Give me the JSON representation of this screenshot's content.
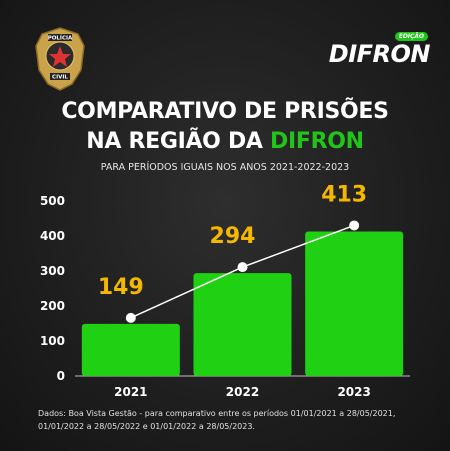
{
  "branding": {
    "badge_line1": "POLÍCIA",
    "badge_line2": "CIVIL",
    "logo_tag": "EDIÇÃO",
    "logo_word": "DIFRON"
  },
  "header": {
    "title_line1": "COMPARATIVO DE PRISÕES",
    "title_line2_prefix": "NA REGIÃO DA ",
    "title_line2_highlight": "DIFRON",
    "subtitle": "PARA PERÍODOS IGUAIS NOS ANOS 2021-2022-2023"
  },
  "chart_data": {
    "type": "bar",
    "categories": [
      "2021",
      "2022",
      "2023"
    ],
    "values": [
      149,
      294,
      413
    ],
    "data_labels": [
      "149",
      "294",
      "413"
    ],
    "yticks": [
      "0",
      "100",
      "200",
      "300",
      "400",
      "500"
    ],
    "ylim": [
      0,
      500
    ],
    "grid": false,
    "trend_line": true
  },
  "footnote": {
    "line1": "Dados: Boa Vista Gestão - para comparativo entre os períodos 01/01/2021 a 28/05/2021,",
    "line2": "01/01/2022 a 28/05/2022  e 01/01/2022 a 28/05/2023."
  },
  "colors": {
    "bar": "#1fd112",
    "highlight": "#21c419",
    "data_label": "#f5b800",
    "line": "#ffffff",
    "background": "#1f1f1f"
  }
}
